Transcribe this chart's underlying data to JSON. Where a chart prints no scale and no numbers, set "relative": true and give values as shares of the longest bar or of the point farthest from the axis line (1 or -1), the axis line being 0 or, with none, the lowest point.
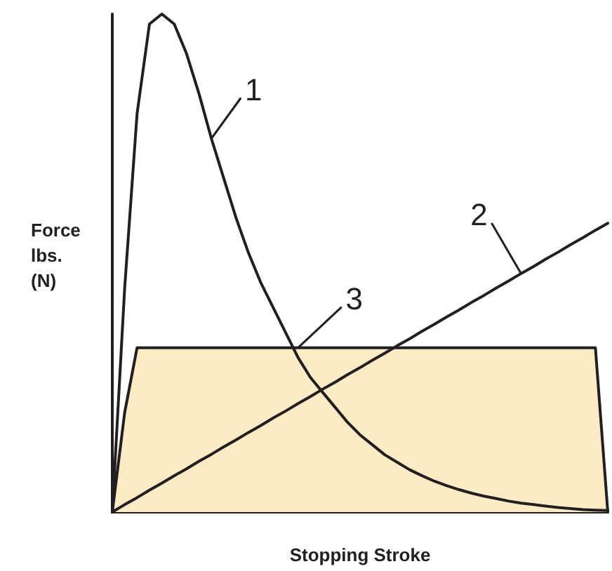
{
  "chart_data": {
    "type": "line",
    "xlabel": "Stopping Stroke",
    "ylabel": "Force\nlbs.\n(N)",
    "relative": true,
    "grid": false,
    "marker": "none",
    "line_style": "solid",
    "categories": [
      null,
      null,
      null,
      null,
      null,
      null,
      null,
      null,
      null,
      null,
      null,
      null,
      null,
      null,
      null,
      null,
      null,
      null,
      null,
      null,
      null,
      null,
      null,
      null,
      null,
      null,
      null,
      null,
      null,
      null,
      null,
      null,
      null,
      null,
      null,
      null,
      null,
      null,
      null,
      null,
      null
    ],
    "series": [
      {
        "name": "3",
        "type": "area",
        "color": "#fdebc5",
        "values": [
          0,
          0.2,
          0.33,
          0.33,
          0.33,
          0.33,
          0.33,
          0.33,
          0.33,
          0.33,
          0.33,
          0.33,
          0.33,
          0.33,
          0.33,
          0.33,
          0.33,
          0.33,
          0.33,
          0.33,
          0.33,
          0.33,
          0.33,
          0.33,
          0.33,
          0.33,
          0.33,
          0.33,
          0.33,
          0.33,
          0.33,
          0.33,
          0.33,
          0.33,
          0.33,
          0.33,
          0.33,
          0.33,
          0.33,
          0.33,
          0
        ]
      },
      {
        "name": "1",
        "color": "#231f20",
        "values": [
          0,
          0.45,
          0.8,
          0.98,
          1,
          0.98,
          0.92,
          0.84,
          0.75,
          0.67,
          0.59,
          0.52,
          0.46,
          0.41,
          0.36,
          0.31,
          0.27,
          0.24,
          0.21,
          0.18,
          0.155,
          0.135,
          0.115,
          0.1,
          0.085,
          0.073,
          0.062,
          0.053,
          0.045,
          0.038,
          0.032,
          0.027,
          0.022,
          0.018,
          0.015,
          0.012,
          0.009,
          0.007,
          0.005,
          0.004,
          0.003
        ]
      },
      {
        "name": "2",
        "color": "#231f20",
        "values": [
          0,
          0.015,
          0.029,
          0.044,
          0.058,
          0.073,
          0.087,
          0.102,
          0.116,
          0.131,
          0.145,
          0.16,
          0.174,
          0.189,
          0.203,
          0.218,
          0.232,
          0.247,
          0.261,
          0.276,
          0.29,
          0.305,
          0.319,
          0.334,
          0.348,
          0.363,
          0.377,
          0.392,
          0.406,
          0.421,
          0.435,
          0.45,
          0.464,
          0.479,
          0.493,
          0.508,
          0.522,
          0.537,
          0.551,
          0.566,
          0.58
        ]
      }
    ]
  }
}
